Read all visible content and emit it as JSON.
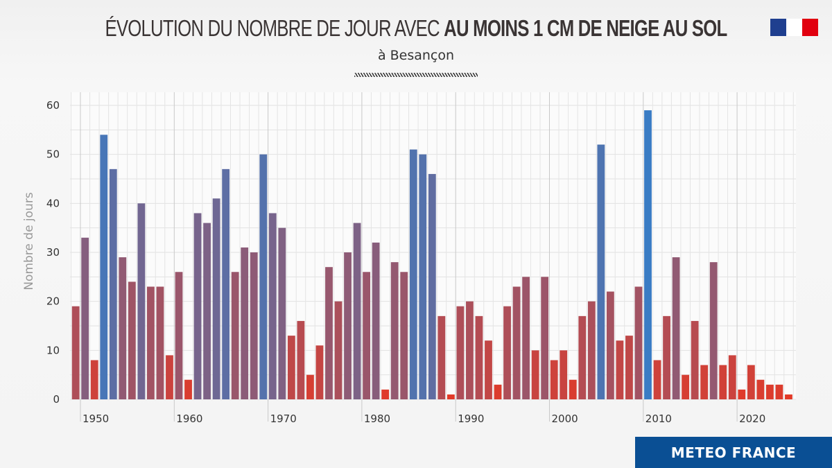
{
  "header": {
    "title_light": "ÉVOLUTION DU NOMBRE DE JOUR AVEC",
    "title_bold": "AU MOINS 1 CM DE NEIGE AU SOL",
    "subtitle": "à Besançon"
  },
  "footer": {
    "brand": "METEO FRANCE"
  },
  "logo": {
    "text": "République Française",
    "colors": [
      "#000091",
      "#ffffff",
      "#e1000f"
    ]
  },
  "colors": {
    "low": "#e23a28",
    "high": "#3a7cc4",
    "brand_bar": "#0a4f94"
  },
  "chart_data": {
    "type": "bar",
    "title": "ÉVOLUTION DU NOMBRE DE JOUR AVEC AU MOINS 1 CM DE NEIGE AU SOL",
    "subtitle": "à Besançon",
    "xlabel": "",
    "ylabel": "Nombre de jours",
    "ylim": [
      0,
      60
    ],
    "yticks": [
      0,
      10,
      20,
      30,
      40,
      50,
      60
    ],
    "xticks": [
      1950,
      1960,
      1970,
      1980,
      1990,
      2000,
      2010,
      2020
    ],
    "grid": true,
    "color_scale": "red (low) to blue (high)",
    "categories": [
      1949,
      1950,
      1951,
      1952,
      1953,
      1954,
      1955,
      1956,
      1957,
      1958,
      1959,
      1960,
      1961,
      1962,
      1963,
      1964,
      1965,
      1966,
      1967,
      1968,
      1969,
      1970,
      1971,
      1972,
      1973,
      1974,
      1975,
      1976,
      1977,
      1978,
      1979,
      1980,
      1981,
      1982,
      1983,
      1984,
      1985,
      1986,
      1987,
      1988,
      1989,
      1990,
      1991,
      1992,
      1993,
      1994,
      1995,
      1996,
      1997,
      1998,
      1999,
      2000,
      2001,
      2002,
      2003,
      2004,
      2005,
      2006,
      2007,
      2008,
      2009,
      2010,
      2011,
      2012,
      2013,
      2014,
      2015,
      2016,
      2017,
      2018,
      2019,
      2020,
      2021,
      2022,
      2023,
      2024,
      2025
    ],
    "values": [
      19,
      33,
      8,
      54,
      47,
      29,
      24,
      40,
      23,
      23,
      9,
      26,
      4,
      38,
      36,
      41,
      47,
      26,
      31,
      30,
      50,
      38,
      35,
      13,
      16,
      5,
      11,
      27,
      20,
      30,
      36,
      26,
      32,
      2,
      28,
      26,
      51,
      50,
      46,
      17,
      1,
      19,
      20,
      17,
      12,
      3,
      19,
      23,
      25,
      10,
      25,
      8,
      10,
      4,
      17,
      20,
      52,
      22,
      12,
      13,
      23,
      59,
      8,
      17,
      29,
      5,
      16,
      7,
      28,
      7,
      9,
      2,
      7,
      4,
      3,
      3,
      1
    ]
  }
}
